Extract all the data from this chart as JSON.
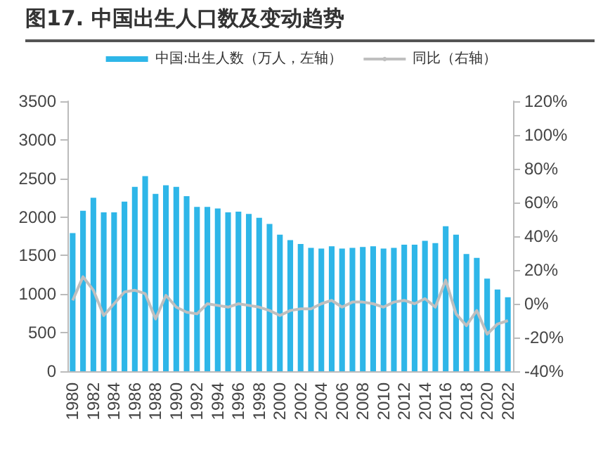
{
  "chart_data": {
    "type": "bar",
    "title": "图17. 中国出生人口数及变动趋势",
    "categories": [
      "1980",
      null,
      "1982",
      null,
      "1984",
      null,
      "1986",
      null,
      "1988",
      null,
      "1990",
      null,
      "1992",
      null,
      "1994",
      null,
      "1996",
      null,
      "1998",
      null,
      "2000",
      null,
      "2002",
      null,
      "2004",
      null,
      "2006",
      null,
      "2008",
      null,
      "2010",
      null,
      "2012",
      null,
      "2014",
      null,
      "2016",
      null,
      "2018",
      null,
      "2020",
      null,
      "2022"
    ],
    "series": [
      {
        "name": "中国:出生人数（万人，左轴）",
        "color": "#2eb6e8",
        "values": [
          1790,
          2080,
          2250,
          2060,
          2060,
          2200,
          2390,
          2530,
          2300,
          2410,
          2390,
          2270,
          2130,
          2130,
          2110,
          2060,
          2070,
          2040,
          1990,
          1910,
          1770,
          1700,
          1650,
          1600,
          1590,
          1620,
          1590,
          1600,
          1610,
          1620,
          1590,
          1600,
          1640,
          1640,
          1690,
          1660,
          1880,
          1770,
          1520,
          1470,
          1200,
          1060,
          960
        ]
      },
      {
        "name": "同比（右轴）",
        "type": "line",
        "axis": "y2",
        "color": "#bfbfbf",
        "values": [
          2,
          16,
          8,
          -7,
          0,
          7,
          8,
          6,
          -9,
          5,
          -2,
          -5,
          -6,
          0,
          -1,
          -2,
          0,
          -1,
          -2,
          -4,
          -7,
          -4,
          -3,
          -3,
          0,
          2,
          -2,
          1,
          1,
          0,
          -2,
          1,
          2,
          0,
          3,
          -2,
          14,
          -6,
          -13,
          -4,
          -18,
          -12,
          -10
        ]
      }
    ],
    "ylim": [
      0,
      3500
    ],
    "yticks": [
      0,
      500,
      1000,
      1500,
      2000,
      2500,
      3000,
      3500
    ],
    "y2lim": [
      -40,
      120
    ],
    "y2ticks": [
      {
        "value": -40,
        "label": "-40%"
      },
      {
        "value": -20,
        "label": "-20%"
      },
      {
        "value": 0,
        "label": "0%"
      },
      {
        "value": 20,
        "label": "20%"
      },
      {
        "value": 40,
        "label": "40%"
      },
      {
        "value": 60,
        "label": "60%"
      },
      {
        "value": 80,
        "label": "80%"
      },
      {
        "value": 100,
        "label": "100%"
      },
      {
        "value": 120,
        "label": "120%"
      }
    ],
    "grid": false,
    "legend": "top",
    "marker": "none"
  }
}
